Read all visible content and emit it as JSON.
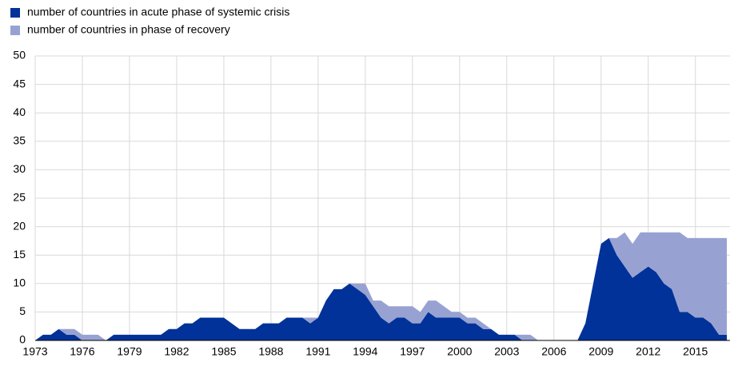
{
  "chart_data": {
    "type": "area",
    "x": [
      1973,
      1973.5,
      1974,
      1974.5,
      1975,
      1975.5,
      1976,
      1976.5,
      1977,
      1977.5,
      1978,
      1978.5,
      1979,
      1979.5,
      1980,
      1980.5,
      1981,
      1981.5,
      1982,
      1982.5,
      1983,
      1983.5,
      1984,
      1984.5,
      1985,
      1985.5,
      1986,
      1986.5,
      1987,
      1987.5,
      1988,
      1988.5,
      1989,
      1989.5,
      1990,
      1990.5,
      1991,
      1991.5,
      1992,
      1992.5,
      1993,
      1993.5,
      1994,
      1994.5,
      1995,
      1995.5,
      1996,
      1996.5,
      1997,
      1997.5,
      1998,
      1998.5,
      1999,
      1999.5,
      2000,
      2000.5,
      2001,
      2001.5,
      2002,
      2002.5,
      2003,
      2003.5,
      2004,
      2004.5,
      2005,
      2005.5,
      2006,
      2006.5,
      2007,
      2007.5,
      2008,
      2008.5,
      2009,
      2009.5,
      2010,
      2010.5,
      2011,
      2011.5,
      2012,
      2012.5,
      2013,
      2013.5,
      2014,
      2014.5,
      2015,
      2015.5,
      2016,
      2016.5,
      2017
    ],
    "series": [
      {
        "name": "number of countries in acute phase of systemic crisis",
        "color": "#003299",
        "values": [
          0,
          1,
          1,
          2,
          1,
          1,
          0,
          0,
          0,
          0,
          1,
          1,
          1,
          1,
          1,
          1,
          1,
          2,
          2,
          3,
          3,
          4,
          4,
          4,
          4,
          3,
          2,
          2,
          2,
          3,
          3,
          3,
          4,
          4,
          4,
          3,
          4,
          7,
          9,
          9,
          10,
          9,
          8,
          6,
          4,
          3,
          4,
          4,
          3,
          3,
          5,
          4,
          4,
          4,
          4,
          3,
          3,
          2,
          2,
          1,
          1,
          1,
          0,
          0,
          0,
          0,
          0,
          0,
          0,
          0,
          3,
          10,
          17,
          18,
          15,
          13,
          11,
          12,
          13,
          12,
          10,
          9,
          5,
          5,
          4,
          4,
          3,
          1,
          1
        ]
      },
      {
        "name": "number of countries in phase of recovery",
        "color": "#98a2d2",
        "values": [
          0,
          0,
          0,
          0,
          1,
          1,
          1,
          1,
          1,
          0,
          0,
          0,
          0,
          0,
          0,
          0,
          0,
          0,
          0,
          0,
          0,
          0,
          0,
          0,
          0,
          0,
          0,
          0,
          0,
          0,
          0,
          0,
          0,
          0,
          0,
          1,
          0,
          0,
          0,
          0,
          0,
          1,
          2,
          1,
          3,
          3,
          2,
          2,
          3,
          2,
          2,
          3,
          2,
          1,
          1,
          1,
          1,
          1,
          0,
          0,
          0,
          0,
          1,
          1,
          0,
          0,
          0,
          0,
          0,
          0,
          0,
          0,
          0,
          0,
          3,
          6,
          6,
          7,
          6,
          7,
          9,
          10,
          14,
          13,
          14,
          14,
          15,
          17,
          17
        ]
      }
    ],
    "xlim": [
      1973,
      2017.2
    ],
    "ylim": [
      0,
      50
    ],
    "xticks": [
      1973,
      1976,
      1979,
      1982,
      1985,
      1988,
      1991,
      1994,
      1997,
      2000,
      2003,
      2006,
      2009,
      2012,
      2015
    ],
    "yticks": [
      0,
      5,
      10,
      15,
      20,
      25,
      30,
      35,
      40,
      45,
      50
    ],
    "grid": true,
    "stacked": true
  }
}
